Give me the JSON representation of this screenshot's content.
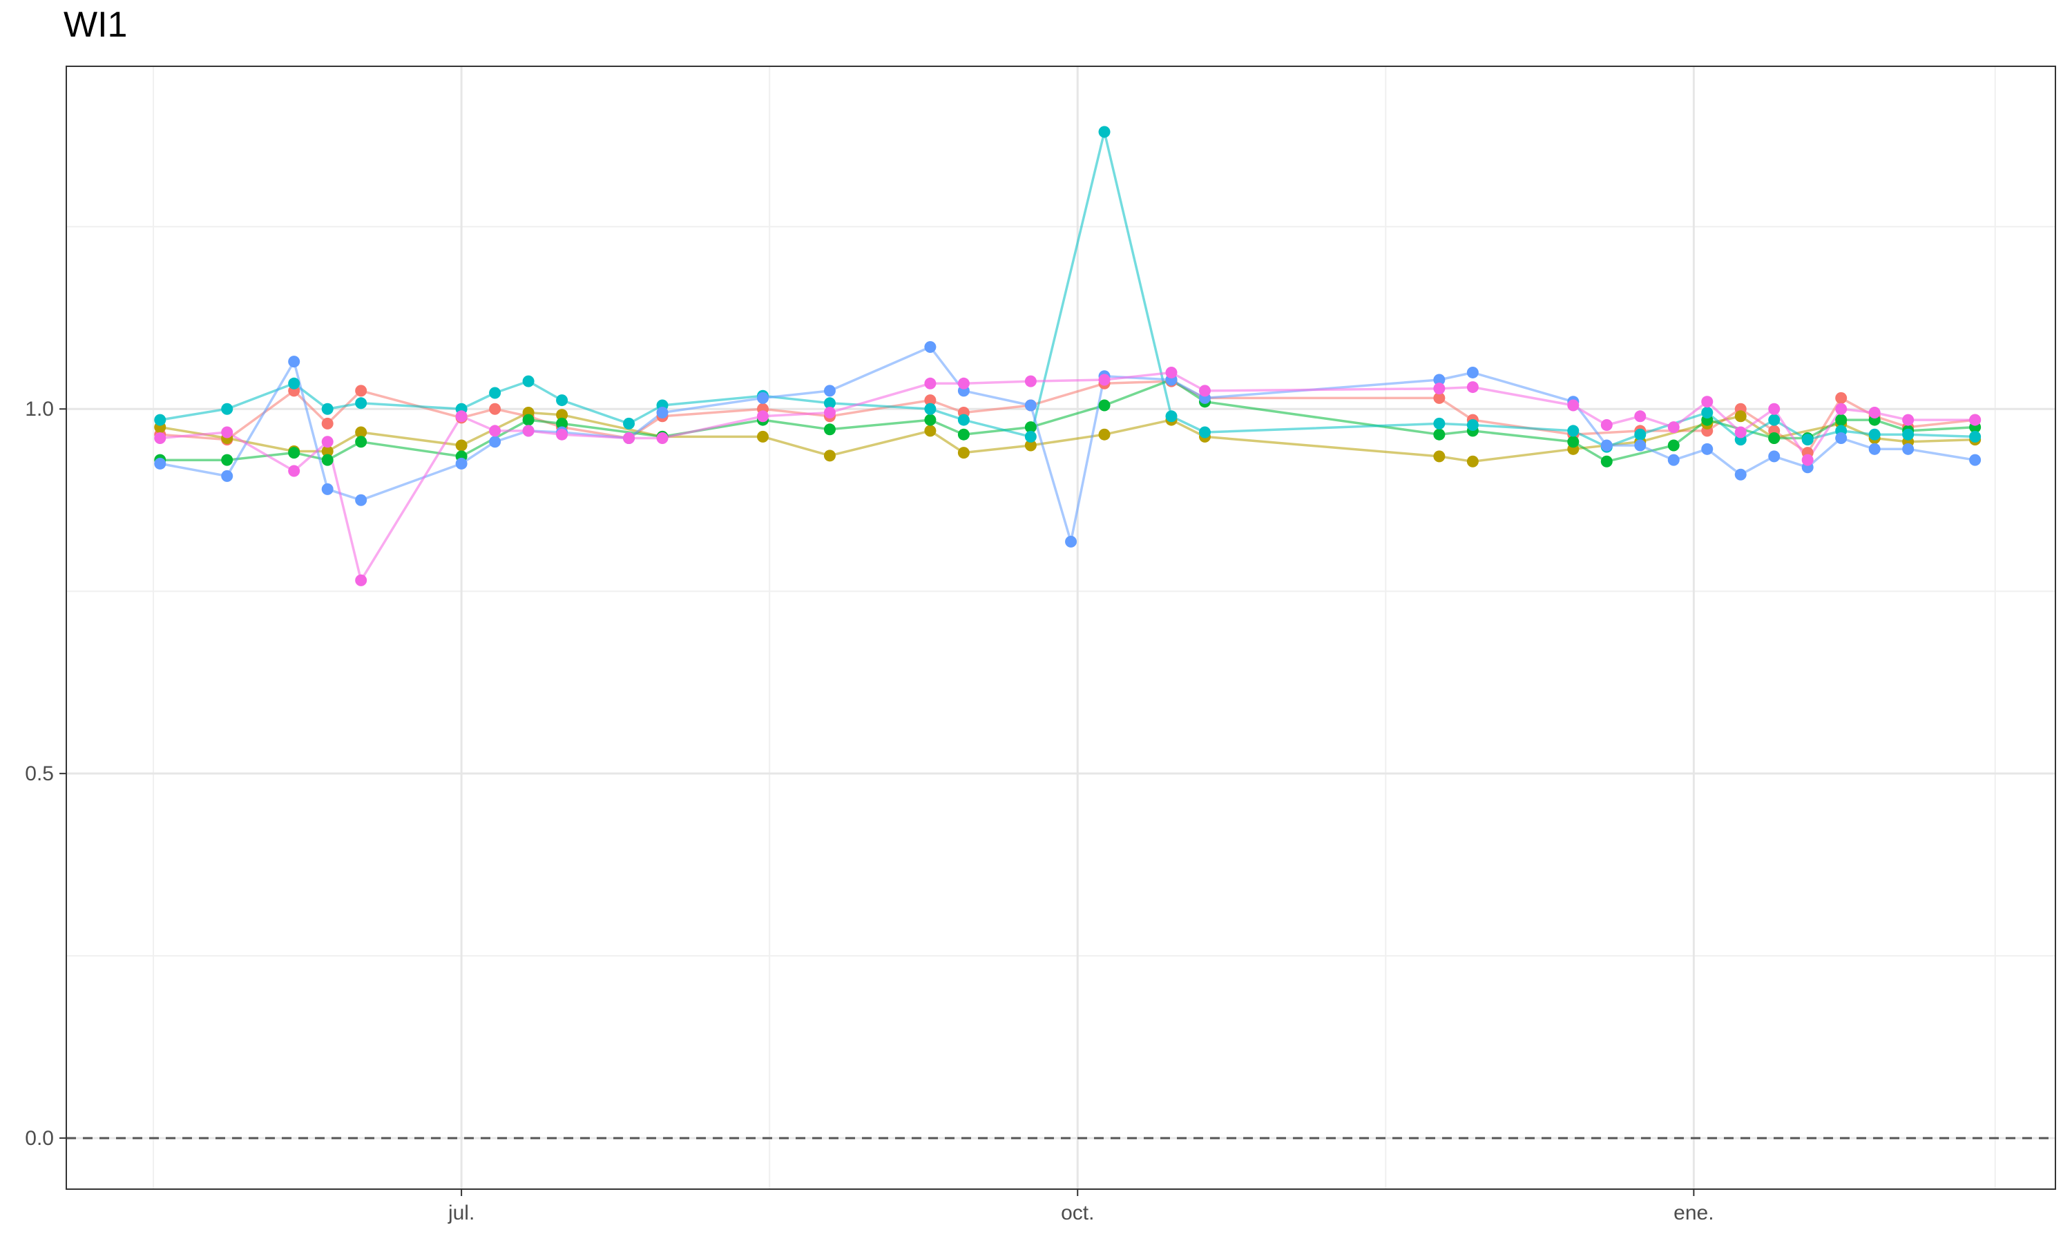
{
  "chart_data": {
    "type": "line",
    "title": "WI1",
    "xlabel": "",
    "ylabel": "",
    "x_axis": {
      "type": "date",
      "range": [
        "2022-05-03",
        "2023-02-24"
      ],
      "ticks": [
        {
          "date": "2022-07-01",
          "label": "jul."
        },
        {
          "date": "2022-10-01",
          "label": "oct."
        },
        {
          "date": "2023-01-01",
          "label": "ene."
        }
      ],
      "minor_ticks": [
        "2022-05-16",
        "2022-08-16",
        "2022-11-16",
        "2023-02-15"
      ]
    },
    "y_axis": {
      "range": [
        -0.07,
        1.47
      ],
      "ticks": [
        {
          "value": 0.0,
          "label": "0.0"
        },
        {
          "value": 0.5,
          "label": "0.5"
        },
        {
          "value": 1.0,
          "label": "1.0"
        }
      ],
      "minor_ticks": [
        0.25,
        0.75,
        1.25
      ]
    },
    "reference_line": {
      "y": 0.0,
      "style": "dashed",
      "color": "#555555"
    },
    "grid": true,
    "legend": "none",
    "series": [
      {
        "color": "#F8766D",
        "points": [
          [
            "2022-05-17",
            0.965
          ],
          [
            "2022-05-27",
            0.958
          ],
          [
            "2022-06-06",
            1.025
          ],
          [
            "2022-06-11",
            0.98
          ],
          [
            "2022-06-16",
            1.025
          ],
          [
            "2022-07-01",
            0.988
          ],
          [
            "2022-07-06",
            1.0
          ],
          [
            "2022-07-11",
            0.99
          ],
          [
            "2022-07-16",
            0.975
          ],
          [
            "2022-07-26",
            0.96
          ],
          [
            "2022-07-31",
            0.99
          ],
          [
            "2022-08-15",
            1.0
          ],
          [
            "2022-08-25",
            0.99
          ],
          [
            "2022-09-09",
            1.012
          ],
          [
            "2022-09-14",
            0.995
          ],
          [
            "2022-09-24",
            1.005
          ],
          [
            "2022-10-05",
            1.035
          ],
          [
            "2022-10-15",
            1.038
          ],
          [
            "2022-10-20",
            1.015
          ],
          [
            "2022-11-24",
            1.015
          ],
          [
            "2022-11-29",
            0.985
          ],
          [
            "2022-12-14",
            0.965
          ],
          [
            "2022-12-24",
            0.97
          ],
          [
            "2023-01-03",
            0.97
          ],
          [
            "2023-01-08",
            1.0
          ],
          [
            "2023-01-13",
            0.97
          ],
          [
            "2023-01-18",
            0.94
          ],
          [
            "2023-01-23",
            1.015
          ],
          [
            "2023-01-28",
            0.99
          ],
          [
            "2023-02-02",
            0.975
          ],
          [
            "2023-02-12",
            0.985
          ]
        ]
      },
      {
        "color": "#B79F00",
        "points": [
          [
            "2022-05-17",
            0.975
          ],
          [
            "2022-05-27",
            0.96
          ],
          [
            "2022-06-06",
            0.942
          ],
          [
            "2022-06-11",
            0.942
          ],
          [
            "2022-06-16",
            0.968
          ],
          [
            "2022-07-01",
            0.95
          ],
          [
            "2022-07-11",
            0.995
          ],
          [
            "2022-07-16",
            0.992
          ],
          [
            "2022-07-31",
            0.962
          ],
          [
            "2022-08-15",
            0.962
          ],
          [
            "2022-08-25",
            0.936
          ],
          [
            "2022-09-09",
            0.97
          ],
          [
            "2022-09-14",
            0.94
          ],
          [
            "2022-09-24",
            0.95
          ],
          [
            "2022-10-05",
            0.965
          ],
          [
            "2022-10-15",
            0.985
          ],
          [
            "2022-10-20",
            0.962
          ],
          [
            "2022-11-24",
            0.935
          ],
          [
            "2022-11-29",
            0.928
          ],
          [
            "2022-12-14",
            0.945
          ],
          [
            "2022-12-24",
            0.955
          ],
          [
            "2023-01-03",
            0.98
          ],
          [
            "2023-01-08",
            0.99
          ],
          [
            "2023-01-13",
            0.96
          ],
          [
            "2023-01-23",
            0.98
          ],
          [
            "2023-01-28",
            0.96
          ],
          [
            "2023-02-02",
            0.955
          ],
          [
            "2023-02-12",
            0.958
          ]
        ]
      },
      {
        "color": "#00BA38",
        "points": [
          [
            "2022-05-17",
            0.93
          ],
          [
            "2022-05-27",
            0.93
          ],
          [
            "2022-06-06",
            0.94
          ],
          [
            "2022-06-11",
            0.93
          ],
          [
            "2022-06-16",
            0.955
          ],
          [
            "2022-07-01",
            0.935
          ],
          [
            "2022-07-11",
            0.985
          ],
          [
            "2022-07-16",
            0.98
          ],
          [
            "2022-07-31",
            0.962
          ],
          [
            "2022-08-15",
            0.985
          ],
          [
            "2022-08-25",
            0.972
          ],
          [
            "2022-09-09",
            0.985
          ],
          [
            "2022-09-14",
            0.965
          ],
          [
            "2022-09-24",
            0.975
          ],
          [
            "2022-10-05",
            1.005
          ],
          [
            "2022-10-15",
            1.04
          ],
          [
            "2022-10-20",
            1.01
          ],
          [
            "2022-11-24",
            0.965
          ],
          [
            "2022-11-29",
            0.97
          ],
          [
            "2022-12-14",
            0.955
          ],
          [
            "2022-12-19",
            0.928
          ],
          [
            "2022-12-29",
            0.95
          ],
          [
            "2023-01-03",
            0.985
          ],
          [
            "2023-01-13",
            0.96
          ],
          [
            "2023-01-18",
            0.96
          ],
          [
            "2023-01-23",
            0.985
          ],
          [
            "2023-01-28",
            0.985
          ],
          [
            "2023-02-02",
            0.97
          ],
          [
            "2023-02-12",
            0.975
          ]
        ]
      },
      {
        "color": "#00BFC4",
        "points": [
          [
            "2022-05-17",
            0.985
          ],
          [
            "2022-05-27",
            1.0
          ],
          [
            "2022-06-06",
            1.035
          ],
          [
            "2022-06-11",
            1.0
          ],
          [
            "2022-06-16",
            1.008
          ],
          [
            "2022-07-01",
            1.0
          ],
          [
            "2022-07-06",
            1.022
          ],
          [
            "2022-07-11",
            1.038
          ],
          [
            "2022-07-16",
            1.012
          ],
          [
            "2022-07-26",
            0.98
          ],
          [
            "2022-07-31",
            1.005
          ],
          [
            "2022-08-15",
            1.018
          ],
          [
            "2022-08-25",
            1.008
          ],
          [
            "2022-09-09",
            1.0
          ],
          [
            "2022-09-14",
            0.985
          ],
          [
            "2022-09-24",
            0.962
          ],
          [
            "2022-10-05",
            1.38
          ],
          [
            "2022-10-15",
            0.99
          ],
          [
            "2022-10-20",
            0.968
          ],
          [
            "2022-11-24",
            0.98
          ],
          [
            "2022-11-29",
            0.978
          ],
          [
            "2022-12-14",
            0.97
          ],
          [
            "2022-12-19",
            0.948
          ],
          [
            "2022-12-24",
            0.965
          ],
          [
            "2023-01-03",
            0.995
          ],
          [
            "2023-01-08",
            0.958
          ],
          [
            "2023-01-13",
            0.985
          ],
          [
            "2023-01-18",
            0.958
          ],
          [
            "2023-01-23",
            0.97
          ],
          [
            "2023-01-28",
            0.965
          ],
          [
            "2023-02-02",
            0.965
          ],
          [
            "2023-02-12",
            0.962
          ]
        ]
      },
      {
        "color": "#619CFF",
        "points": [
          [
            "2022-05-17",
            0.925
          ],
          [
            "2022-05-27",
            0.908
          ],
          [
            "2022-06-06",
            1.065
          ],
          [
            "2022-06-11",
            0.89
          ],
          [
            "2022-06-16",
            0.875
          ],
          [
            "2022-07-01",
            0.925
          ],
          [
            "2022-07-06",
            0.955
          ],
          [
            "2022-07-11",
            0.97
          ],
          [
            "2022-07-16",
            0.968
          ],
          [
            "2022-07-26",
            0.96
          ],
          [
            "2022-07-31",
            0.995
          ],
          [
            "2022-08-15",
            1.015
          ],
          [
            "2022-08-25",
            1.025
          ],
          [
            "2022-09-09",
            1.085
          ],
          [
            "2022-09-14",
            1.025
          ],
          [
            "2022-09-24",
            1.005
          ],
          [
            "2022-09-30",
            0.818
          ],
          [
            "2022-10-05",
            1.045
          ],
          [
            "2022-10-15",
            1.04
          ],
          [
            "2022-10-20",
            1.015
          ],
          [
            "2022-11-24",
            1.04
          ],
          [
            "2022-11-29",
            1.05
          ],
          [
            "2022-12-14",
            1.01
          ],
          [
            "2022-12-19",
            0.95
          ],
          [
            "2022-12-24",
            0.95
          ],
          [
            "2022-12-29",
            0.93
          ],
          [
            "2023-01-03",
            0.945
          ],
          [
            "2023-01-08",
            0.91
          ],
          [
            "2023-01-13",
            0.935
          ],
          [
            "2023-01-18",
            0.92
          ],
          [
            "2023-01-23",
            0.96
          ],
          [
            "2023-01-28",
            0.945
          ],
          [
            "2023-02-02",
            0.945
          ],
          [
            "2023-02-12",
            0.93
          ]
        ]
      },
      {
        "color": "#F564E3",
        "points": [
          [
            "2022-05-17",
            0.96
          ],
          [
            "2022-05-27",
            0.968
          ],
          [
            "2022-06-06",
            0.915
          ],
          [
            "2022-06-11",
            0.955
          ],
          [
            "2022-06-16",
            0.765
          ],
          [
            "2022-07-01",
            0.99
          ],
          [
            "2022-07-06",
            0.97
          ],
          [
            "2022-07-11",
            0.97
          ],
          [
            "2022-07-16",
            0.965
          ],
          [
            "2022-07-26",
            0.96
          ],
          [
            "2022-07-31",
            0.96
          ],
          [
            "2022-08-15",
            0.99
          ],
          [
            "2022-08-25",
            0.995
          ],
          [
            "2022-09-09",
            1.035
          ],
          [
            "2022-09-14",
            1.035
          ],
          [
            "2022-09-24",
            1.038
          ],
          [
            "2022-10-05",
            1.04
          ],
          [
            "2022-10-15",
            1.05
          ],
          [
            "2022-10-20",
            1.025
          ],
          [
            "2022-11-24",
            1.028
          ],
          [
            "2022-11-29",
            1.03
          ],
          [
            "2022-12-14",
            1.005
          ],
          [
            "2022-12-19",
            0.978
          ],
          [
            "2022-12-24",
            0.99
          ],
          [
            "2022-12-29",
            0.975
          ],
          [
            "2023-01-03",
            1.01
          ],
          [
            "2023-01-08",
            0.968
          ],
          [
            "2023-01-13",
            1.0
          ],
          [
            "2023-01-18",
            0.93
          ],
          [
            "2023-01-23",
            1.0
          ],
          [
            "2023-01-28",
            0.995
          ],
          [
            "2023-02-02",
            0.985
          ],
          [
            "2023-02-12",
            0.985
          ]
        ]
      }
    ]
  }
}
